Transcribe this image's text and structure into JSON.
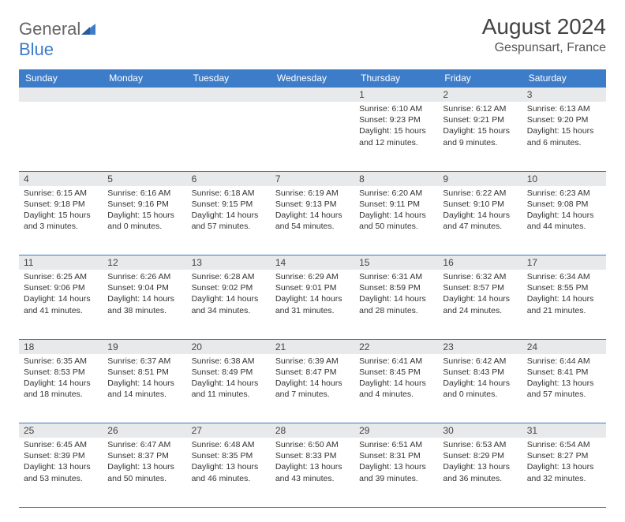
{
  "logo": {
    "text1": "General",
    "text2": "Blue"
  },
  "title": "August 2024",
  "location": "Gespunsart, France",
  "colors": {
    "header_bg": "#3d7cc9",
    "header_text": "#ffffff",
    "stripe_bg": "#e8e9ea",
    "border": "#3d7cc9",
    "text": "#333333",
    "title_text": "#444444"
  },
  "day_labels": [
    "Sunday",
    "Monday",
    "Tuesday",
    "Wednesday",
    "Thursday",
    "Friday",
    "Saturday"
  ],
  "weeks": [
    [
      null,
      null,
      null,
      null,
      {
        "n": "1",
        "sr": "Sunrise: 6:10 AM",
        "ss": "Sunset: 9:23 PM",
        "dl": "Daylight: 15 hours and 12 minutes."
      },
      {
        "n": "2",
        "sr": "Sunrise: 6:12 AM",
        "ss": "Sunset: 9:21 PM",
        "dl": "Daylight: 15 hours and 9 minutes."
      },
      {
        "n": "3",
        "sr": "Sunrise: 6:13 AM",
        "ss": "Sunset: 9:20 PM",
        "dl": "Daylight: 15 hours and 6 minutes."
      }
    ],
    [
      {
        "n": "4",
        "sr": "Sunrise: 6:15 AM",
        "ss": "Sunset: 9:18 PM",
        "dl": "Daylight: 15 hours and 3 minutes."
      },
      {
        "n": "5",
        "sr": "Sunrise: 6:16 AM",
        "ss": "Sunset: 9:16 PM",
        "dl": "Daylight: 15 hours and 0 minutes."
      },
      {
        "n": "6",
        "sr": "Sunrise: 6:18 AM",
        "ss": "Sunset: 9:15 PM",
        "dl": "Daylight: 14 hours and 57 minutes."
      },
      {
        "n": "7",
        "sr": "Sunrise: 6:19 AM",
        "ss": "Sunset: 9:13 PM",
        "dl": "Daylight: 14 hours and 54 minutes."
      },
      {
        "n": "8",
        "sr": "Sunrise: 6:20 AM",
        "ss": "Sunset: 9:11 PM",
        "dl": "Daylight: 14 hours and 50 minutes."
      },
      {
        "n": "9",
        "sr": "Sunrise: 6:22 AM",
        "ss": "Sunset: 9:10 PM",
        "dl": "Daylight: 14 hours and 47 minutes."
      },
      {
        "n": "10",
        "sr": "Sunrise: 6:23 AM",
        "ss": "Sunset: 9:08 PM",
        "dl": "Daylight: 14 hours and 44 minutes."
      }
    ],
    [
      {
        "n": "11",
        "sr": "Sunrise: 6:25 AM",
        "ss": "Sunset: 9:06 PM",
        "dl": "Daylight: 14 hours and 41 minutes."
      },
      {
        "n": "12",
        "sr": "Sunrise: 6:26 AM",
        "ss": "Sunset: 9:04 PM",
        "dl": "Daylight: 14 hours and 38 minutes."
      },
      {
        "n": "13",
        "sr": "Sunrise: 6:28 AM",
        "ss": "Sunset: 9:02 PM",
        "dl": "Daylight: 14 hours and 34 minutes."
      },
      {
        "n": "14",
        "sr": "Sunrise: 6:29 AM",
        "ss": "Sunset: 9:01 PM",
        "dl": "Daylight: 14 hours and 31 minutes."
      },
      {
        "n": "15",
        "sr": "Sunrise: 6:31 AM",
        "ss": "Sunset: 8:59 PM",
        "dl": "Daylight: 14 hours and 28 minutes."
      },
      {
        "n": "16",
        "sr": "Sunrise: 6:32 AM",
        "ss": "Sunset: 8:57 PM",
        "dl": "Daylight: 14 hours and 24 minutes."
      },
      {
        "n": "17",
        "sr": "Sunrise: 6:34 AM",
        "ss": "Sunset: 8:55 PM",
        "dl": "Daylight: 14 hours and 21 minutes."
      }
    ],
    [
      {
        "n": "18",
        "sr": "Sunrise: 6:35 AM",
        "ss": "Sunset: 8:53 PM",
        "dl": "Daylight: 14 hours and 18 minutes."
      },
      {
        "n": "19",
        "sr": "Sunrise: 6:37 AM",
        "ss": "Sunset: 8:51 PM",
        "dl": "Daylight: 14 hours and 14 minutes."
      },
      {
        "n": "20",
        "sr": "Sunrise: 6:38 AM",
        "ss": "Sunset: 8:49 PM",
        "dl": "Daylight: 14 hours and 11 minutes."
      },
      {
        "n": "21",
        "sr": "Sunrise: 6:39 AM",
        "ss": "Sunset: 8:47 PM",
        "dl": "Daylight: 14 hours and 7 minutes."
      },
      {
        "n": "22",
        "sr": "Sunrise: 6:41 AM",
        "ss": "Sunset: 8:45 PM",
        "dl": "Daylight: 14 hours and 4 minutes."
      },
      {
        "n": "23",
        "sr": "Sunrise: 6:42 AM",
        "ss": "Sunset: 8:43 PM",
        "dl": "Daylight: 14 hours and 0 minutes."
      },
      {
        "n": "24",
        "sr": "Sunrise: 6:44 AM",
        "ss": "Sunset: 8:41 PM",
        "dl": "Daylight: 13 hours and 57 minutes."
      }
    ],
    [
      {
        "n": "25",
        "sr": "Sunrise: 6:45 AM",
        "ss": "Sunset: 8:39 PM",
        "dl": "Daylight: 13 hours and 53 minutes."
      },
      {
        "n": "26",
        "sr": "Sunrise: 6:47 AM",
        "ss": "Sunset: 8:37 PM",
        "dl": "Daylight: 13 hours and 50 minutes."
      },
      {
        "n": "27",
        "sr": "Sunrise: 6:48 AM",
        "ss": "Sunset: 8:35 PM",
        "dl": "Daylight: 13 hours and 46 minutes."
      },
      {
        "n": "28",
        "sr": "Sunrise: 6:50 AM",
        "ss": "Sunset: 8:33 PM",
        "dl": "Daylight: 13 hours and 43 minutes."
      },
      {
        "n": "29",
        "sr": "Sunrise: 6:51 AM",
        "ss": "Sunset: 8:31 PM",
        "dl": "Daylight: 13 hours and 39 minutes."
      },
      {
        "n": "30",
        "sr": "Sunrise: 6:53 AM",
        "ss": "Sunset: 8:29 PM",
        "dl": "Daylight: 13 hours and 36 minutes."
      },
      {
        "n": "31",
        "sr": "Sunrise: 6:54 AM",
        "ss": "Sunset: 8:27 PM",
        "dl": "Daylight: 13 hours and 32 minutes."
      }
    ]
  ]
}
